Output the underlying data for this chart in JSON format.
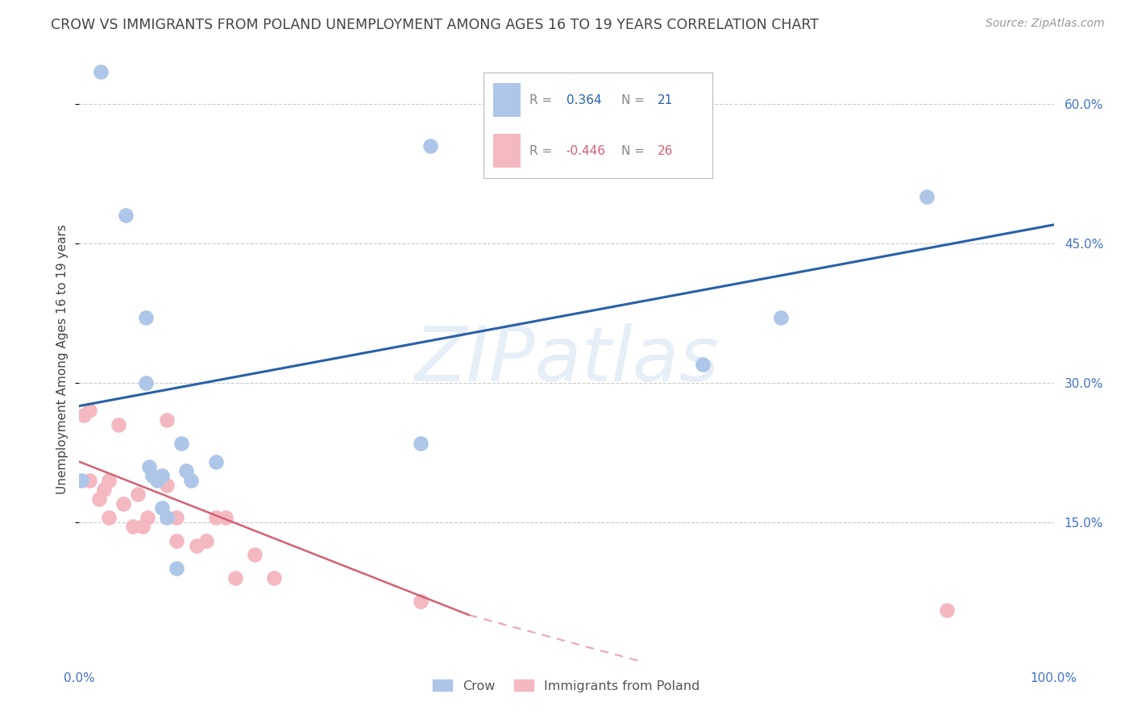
{
  "title": "CROW VS IMMIGRANTS FROM POLAND UNEMPLOYMENT AMONG AGES 16 TO 19 YEARS CORRELATION CHART",
  "source": "Source: ZipAtlas.com",
  "ylabel": "Unemployment Among Ages 16 to 19 years",
  "xlim": [
    0.0,
    1.0
  ],
  "ylim": [
    0.0,
    0.65
  ],
  "yticks": [
    0.15,
    0.3,
    0.45,
    0.6
  ],
  "ytick_labels": [
    "15.0%",
    "30.0%",
    "45.0%",
    "60.0%"
  ],
  "xticks": [
    0.0,
    1.0
  ],
  "xtick_labels": [
    "0.0%",
    "100.0%"
  ],
  "legend_labels": [
    "Crow",
    "Immigrants from Poland"
  ],
  "crow_R": "0.364",
  "crow_N": "21",
  "poland_R": "-0.446",
  "poland_N": "26",
  "crow_color": "#aec6e8",
  "crow_line_color": "#2860a8",
  "poland_color": "#f4b8c1",
  "poland_line_color": "#d45f72",
  "watermark": "ZIPatlas",
  "background_color": "#ffffff",
  "crow_points_x": [
    0.002,
    0.022,
    0.048,
    0.068,
    0.068,
    0.072,
    0.075,
    0.08,
    0.085,
    0.085,
    0.09,
    0.1,
    0.105,
    0.11,
    0.115,
    0.14,
    0.35,
    0.36,
    0.64,
    0.72,
    0.87
  ],
  "crow_points_y": [
    0.195,
    0.635,
    0.48,
    0.37,
    0.3,
    0.21,
    0.2,
    0.195,
    0.2,
    0.165,
    0.155,
    0.1,
    0.235,
    0.205,
    0.195,
    0.215,
    0.235,
    0.555,
    0.32,
    0.37,
    0.5
  ],
  "poland_points_x": [
    0.005,
    0.01,
    0.01,
    0.02,
    0.025,
    0.03,
    0.03,
    0.04,
    0.045,
    0.055,
    0.06,
    0.065,
    0.07,
    0.09,
    0.09,
    0.1,
    0.1,
    0.12,
    0.13,
    0.14,
    0.15,
    0.16,
    0.18,
    0.2,
    0.35,
    0.89
  ],
  "poland_points_y": [
    0.265,
    0.195,
    0.27,
    0.175,
    0.185,
    0.155,
    0.195,
    0.255,
    0.17,
    0.145,
    0.18,
    0.145,
    0.155,
    0.26,
    0.19,
    0.13,
    0.155,
    0.125,
    0.13,
    0.155,
    0.155,
    0.09,
    0.115,
    0.09,
    0.065,
    0.055
  ],
  "crow_trendline": [
    0.0,
    0.275,
    1.0,
    0.47
  ],
  "poland_trendline_solid": [
    0.0,
    0.215,
    0.4,
    0.05
  ],
  "poland_trendline_dash": [
    0.4,
    0.05,
    1.0,
    -0.12
  ],
  "grid_color": "#cccccc",
  "tick_color": "#4472c4",
  "label_color": "#555555",
  "title_color": "#444444"
}
